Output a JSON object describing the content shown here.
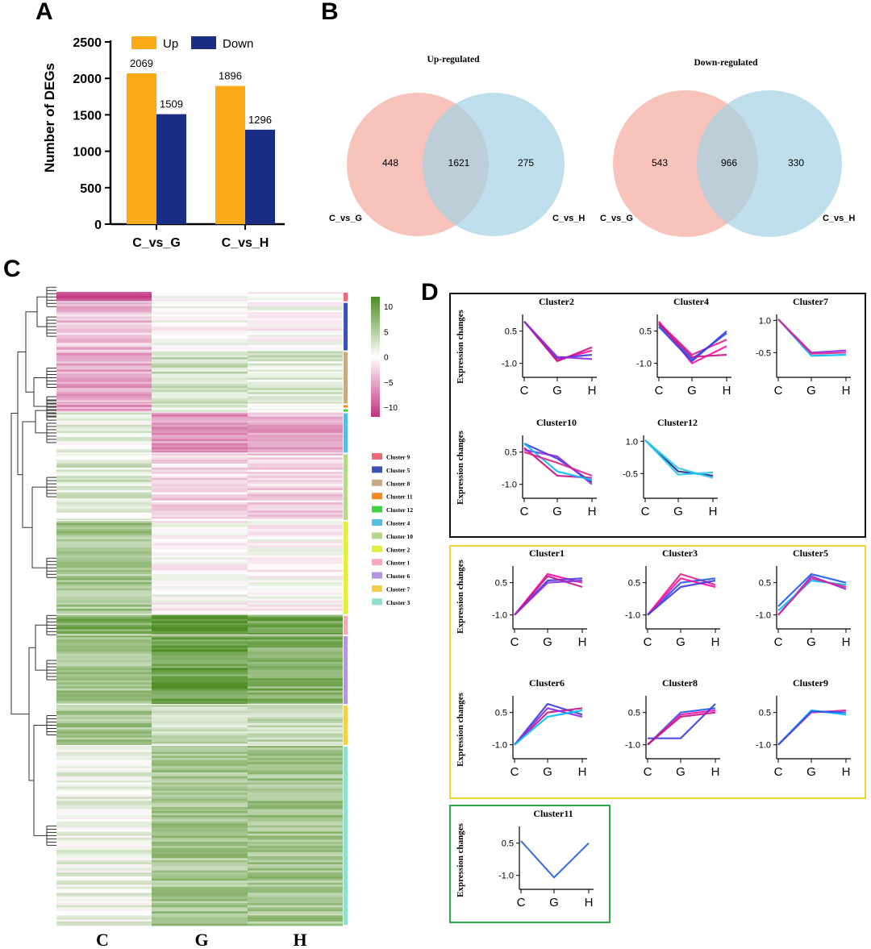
{
  "panels": {
    "a": "A",
    "b": "B",
    "c": "C",
    "d": "D"
  },
  "chart_data": [
    {
      "type": "bar",
      "ylabel": "Number of DEGs",
      "ylim": [
        0,
        2500
      ],
      "yticks": [
        0,
        500,
        1000,
        1500,
        2000,
        2500
      ],
      "categories": [
        "C_vs_G",
        "C_vs_H"
      ],
      "series": [
        {
          "name": "Up",
          "color": "#FAAA14",
          "values": [
            2069,
            1896
          ],
          "labels": [
            "2069",
            "1896"
          ]
        },
        {
          "name": "Down",
          "color": "#1B2E86",
          "values": [
            1509,
            1296
          ],
          "labels": [
            "1509",
            "1296"
          ]
        }
      ]
    },
    {
      "type": "venn",
      "title": "Up-regulated",
      "sets": [
        {
          "name": "C_vs_G",
          "color": "#F7B8AE",
          "only": "448"
        },
        {
          "name": "C_vs_H",
          "color": "#A8D3E4",
          "only": "275"
        }
      ],
      "intersection": "1621"
    },
    {
      "type": "venn",
      "title": "Down-regulated",
      "sets": [
        {
          "name": "C_vs_G",
          "color": "#F7B8AE",
          "only": "543"
        },
        {
          "name": "C_vs_H",
          "color": "#A8D3E4",
          "only": "330"
        }
      ],
      "intersection": "966"
    },
    {
      "type": "heatmap",
      "columns": [
        "C",
        "G",
        "H"
      ],
      "colorbar": {
        "range": [
          -10,
          10
        ],
        "ticks": [
          "10",
          "5",
          "0",
          "−5",
          "−10"
        ],
        "low": "#C2327E",
        "mid": "#FFFFFF",
        "high": "#4C8C22"
      },
      "clusters": [
        {
          "name": "Cluster 9",
          "color": "#F2677A",
          "profile": [
            -8,
            0,
            0
          ]
        },
        {
          "name": "Cluster 5",
          "color": "#3A53B8",
          "profile": [
            -3,
            0,
            0
          ]
        },
        {
          "name": "Cluster 8",
          "color": "#C9AA82",
          "profile": [
            -4,
            3,
            2
          ]
        },
        {
          "name": "Cluster 11",
          "color": "#F58A1F",
          "profile": [
            -6,
            1,
            -1
          ]
        },
        {
          "name": "Cluster 12",
          "color": "#3FD43F",
          "profile": [
            -5,
            1,
            0
          ]
        },
        {
          "name": "Cluster 4",
          "color": "#52BDE6",
          "profile": [
            2,
            -4,
            -3
          ]
        },
        {
          "name": "Cluster 10",
          "color": "#B5D98A",
          "profile": [
            4,
            -2,
            -2
          ]
        },
        {
          "name": "Cluster 2",
          "color": "#E2F03C",
          "profile": [
            4,
            0,
            0
          ]
        },
        {
          "name": "Cluster 1",
          "color": "#F7A8BC",
          "profile": [
            7,
            8,
            7
          ]
        },
        {
          "name": "Cluster 6",
          "color": "#B596DE",
          "profile": [
            3,
            8,
            7
          ]
        },
        {
          "name": "Cluster 7",
          "color": "#F7CE4A",
          "profile": [
            6,
            3,
            3
          ]
        },
        {
          "name": "Cluster 3",
          "color": "#8FE0D2",
          "profile": [
            2,
            6,
            5
          ]
        }
      ],
      "blocks": [
        {
          "cluster": "Cluster 9",
          "rows": 5,
          "C": -8,
          "G": 0,
          "H": 0
        },
        {
          "cluster": "Cluster 5",
          "rows": 24,
          "C": -3,
          "G": 0,
          "H": 0
        },
        {
          "cluster": "Cluster 8",
          "rows": 26,
          "C": -4,
          "G": 3,
          "H": 2
        },
        {
          "cluster": "Cluster 11",
          "rows": 2,
          "C": -6,
          "G": 1,
          "H": -1
        },
        {
          "cluster": "Cluster 12",
          "rows": 2,
          "C": -5,
          "G": 1,
          "H": 0
        },
        {
          "cluster": "Cluster 4",
          "rows": 20,
          "C": 1,
          "G": -5,
          "H": -4
        },
        {
          "cluster": "Cluster 10",
          "rows": 33,
          "C": 2,
          "G": -2,
          "H": -2
        },
        {
          "cluster": "Cluster 2",
          "rows": 46,
          "C": 5,
          "G": 0,
          "H": 0
        },
        {
          "cluster": "Cluster 1",
          "rows": 10,
          "C": 7,
          "G": 9,
          "H": 8
        },
        {
          "cluster": "Cluster 6",
          "rows": 34,
          "C": 5,
          "G": 8,
          "H": 7
        },
        {
          "cluster": "Cluster 7",
          "rows": 20,
          "C": 5,
          "G": 3,
          "H": 3
        },
        {
          "cluster": "Cluster 3",
          "rows": 88,
          "C": 1,
          "G": 5,
          "H": 5
        }
      ]
    },
    {
      "type": "line",
      "ylabel": "Expression changes",
      "x": [
        "C",
        "G",
        "H"
      ],
      "groups": [
        {
          "box": "black",
          "clusters": [
            {
              "title": "Cluster2",
              "yticks": [
                "0.5",
                "-1.0"
              ],
              "lines": [
                [
                  0.95,
                  -0.85,
                  -0.4
                ],
                [
                  0.95,
                  -0.75,
                  -0.6
                ],
                [
                  0.95,
                  -0.9,
                  -0.25
                ],
                [
                  0.95,
                  -0.7,
                  -0.8
                ]
              ]
            },
            {
              "title": "Cluster4",
              "yticks": [
                "0.5",
                "-1.0"
              ],
              "lines": [
                [
                  0.9,
                  -0.6,
                  0.1
                ],
                [
                  0.8,
                  -0.8,
                  0.4
                ],
                [
                  0.95,
                  -1.0,
                  -0.2
                ],
                [
                  0.7,
                  -0.9,
                  0.5
                ],
                [
                  0.85,
                  -0.7,
                  -0.6
                ]
              ]
            },
            {
              "title": "Cluster7",
              "yticks": [
                "1.0",
                "-0.5"
              ],
              "lines": [
                [
                  1.05,
                  -0.5,
                  -0.4
                ],
                [
                  1.05,
                  -0.65,
                  -0.6
                ],
                [
                  1.05,
                  -0.55,
                  -0.5
                ]
              ]
            },
            {
              "title": "Cluster10",
              "yticks": [
                "0.5",
                "-1.0"
              ],
              "lines": [
                [
                  0.9,
                  0.2,
                  -0.9
                ],
                [
                  0.7,
                  -0.6,
                  -0.7
                ],
                [
                  0.6,
                  0.3,
                  -1.0
                ],
                [
                  0.9,
                  -0.4,
                  -0.8
                ],
                [
                  0.5,
                  0.0,
                  -0.6
                ]
              ]
            },
            {
              "title": "Cluster12",
              "yticks": [
                "1.0",
                "-0.5"
              ],
              "lines": [
                [
                  1.05,
                  -0.4,
                  -0.6
                ],
                [
                  1.05,
                  -0.55,
                  -0.45
                ],
                [
                  1.05,
                  -0.25,
                  -0.7
                ]
              ]
            }
          ]
        },
        {
          "box": "yellow",
          "clusters": [
            {
              "title": "Cluster1",
              "yticks": [
                "0.5",
                "-1.0"
              ],
              "lines": [
                [
                  -1.0,
                  0.9,
                  0.5
                ],
                [
                  -1.0,
                  0.6,
                  0.7
                ],
                [
                  -1.0,
                  0.8,
                  0.3
                ],
                [
                  -1.0,
                  0.5,
                  0.6
                ]
              ]
            },
            {
              "title": "Cluster3",
              "yticks": [
                "0.5",
                "-1.0"
              ],
              "lines": [
                [
                  -1.0,
                  0.9,
                  0.4
                ],
                [
                  -1.0,
                  0.5,
                  0.7
                ],
                [
                  -1.0,
                  0.7,
                  0.3
                ],
                [
                  -1.0,
                  0.3,
                  0.6
                ]
              ]
            },
            {
              "title": "Cluster5",
              "yticks": [
                "0.5",
                "-1.0"
              ],
              "lines": [
                [
                  -1.0,
                  0.8,
                  0.2
                ],
                [
                  -0.8,
                  0.6,
                  0.4
                ],
                [
                  -1.0,
                  0.7,
                  0.3
                ],
                [
                  -0.6,
                  0.9,
                  0.5
                ]
              ]
            },
            {
              "title": "Cluster6",
              "yticks": [
                "0.5",
                "-1.0"
              ],
              "lines": [
                [
                  -1.0,
                  0.9,
                  0.4
                ],
                [
                  -1.0,
                  0.5,
                  0.7
                ],
                [
                  -1.0,
                  0.7,
                  0.3
                ],
                [
                  -1.0,
                  0.3,
                  0.6
                ]
              ]
            },
            {
              "title": "Cluster8",
              "yticks": [
                "0.5",
                "-1.0"
              ],
              "lines": [
                [
                  -1.0,
                  0.5,
                  0.7
                ],
                [
                  -1.0,
                  0.4,
                  0.6
                ],
                [
                  -0.7,
                  -0.7,
                  0.9
                ],
                [
                  -1.0,
                  0.3,
                  0.5
                ]
              ]
            },
            {
              "title": "Cluster9",
              "yticks": [
                "0.5",
                "-1.0"
              ],
              "lines": [
                [
                  -1.0,
                  0.6,
                  0.4
                ],
                [
                  -1.0,
                  0.5,
                  0.6
                ],
                [
                  -1.0,
                  0.55,
                  0.5
                ]
              ]
            }
          ]
        },
        {
          "box": "green",
          "clusters": [
            {
              "title": "Cluster11",
              "yticks": [
                "0.5",
                "-1.0"
              ],
              "lines": [
                [
                  0.6,
                  -1.1,
                  0.5
                ]
              ]
            }
          ]
        }
      ]
    }
  ]
}
